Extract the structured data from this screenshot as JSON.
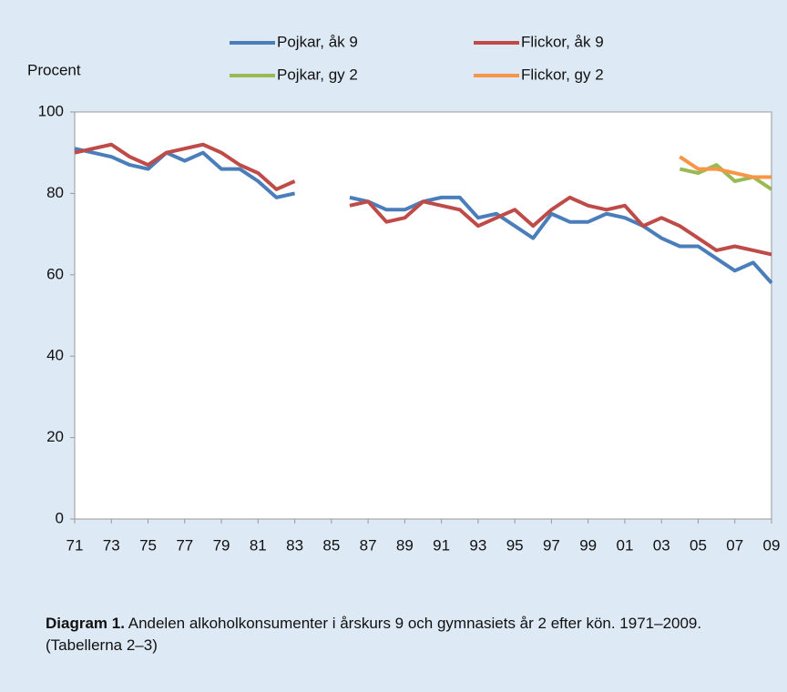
{
  "chart_data": {
    "type": "line",
    "y_label": "Procent",
    "caption_label": "Diagram 1.",
    "caption_text": "Andelen alkoholkonsumenter i årskurs 9 och gymnasiets år 2 efter kön. 1971–2009. (Tabellerna 2–3)",
    "categories": [
      "71",
      null,
      "73",
      null,
      "75",
      null,
      "77",
      null,
      "79",
      null,
      "81",
      null,
      "83",
      null,
      "85",
      null,
      "87",
      null,
      "89",
      null,
      "91",
      null,
      "93",
      null,
      "95",
      null,
      "97",
      null,
      "99",
      null,
      "01",
      null,
      "03",
      null,
      "05",
      null,
      "07",
      null,
      "09"
    ],
    "series": [
      {
        "name": "Pojkar, åk 9",
        "color": "#4a7ebb",
        "values": [
          91,
          90,
          89,
          87,
          86,
          90,
          88,
          90,
          86,
          86,
          83,
          79,
          80,
          null,
          null,
          79,
          78,
          76,
          76,
          78,
          79,
          79,
          74,
          75,
          72,
          69,
          75,
          73,
          73,
          75,
          74,
          72,
          69,
          67,
          67,
          64,
          61,
          63,
          58
        ]
      },
      {
        "name": "Flickor, åk 9",
        "color": "#be4b48",
        "values": [
          90,
          91,
          92,
          89,
          87,
          90,
          91,
          92,
          90,
          87,
          85,
          81,
          83,
          null,
          null,
          77,
          78,
          73,
          74,
          78,
          77,
          76,
          72,
          74,
          76,
          72,
          76,
          79,
          77,
          76,
          77,
          72,
          74,
          72,
          69,
          66,
          67,
          66,
          65
        ]
      },
      {
        "name": "Pojkar, gy 2",
        "color": "#98b954",
        "values": [
          null,
          null,
          null,
          null,
          null,
          null,
          null,
          null,
          null,
          null,
          null,
          null,
          null,
          null,
          null,
          null,
          null,
          null,
          null,
          null,
          null,
          null,
          null,
          null,
          null,
          null,
          null,
          null,
          null,
          null,
          null,
          null,
          null,
          86,
          85,
          87,
          83,
          84,
          81
        ]
      },
      {
        "name": "Flickor, gy 2",
        "color": "#f79646",
        "values": [
          null,
          null,
          null,
          null,
          null,
          null,
          null,
          null,
          null,
          null,
          null,
          null,
          null,
          null,
          null,
          null,
          null,
          null,
          null,
          null,
          null,
          null,
          null,
          null,
          null,
          null,
          null,
          null,
          null,
          null,
          null,
          null,
          null,
          89,
          86,
          86,
          85,
          84,
          84
        ]
      }
    ],
    "ylim": [
      0,
      100
    ],
    "yticks": [
      0,
      20,
      40,
      60,
      80,
      100
    ],
    "grid": false
  }
}
